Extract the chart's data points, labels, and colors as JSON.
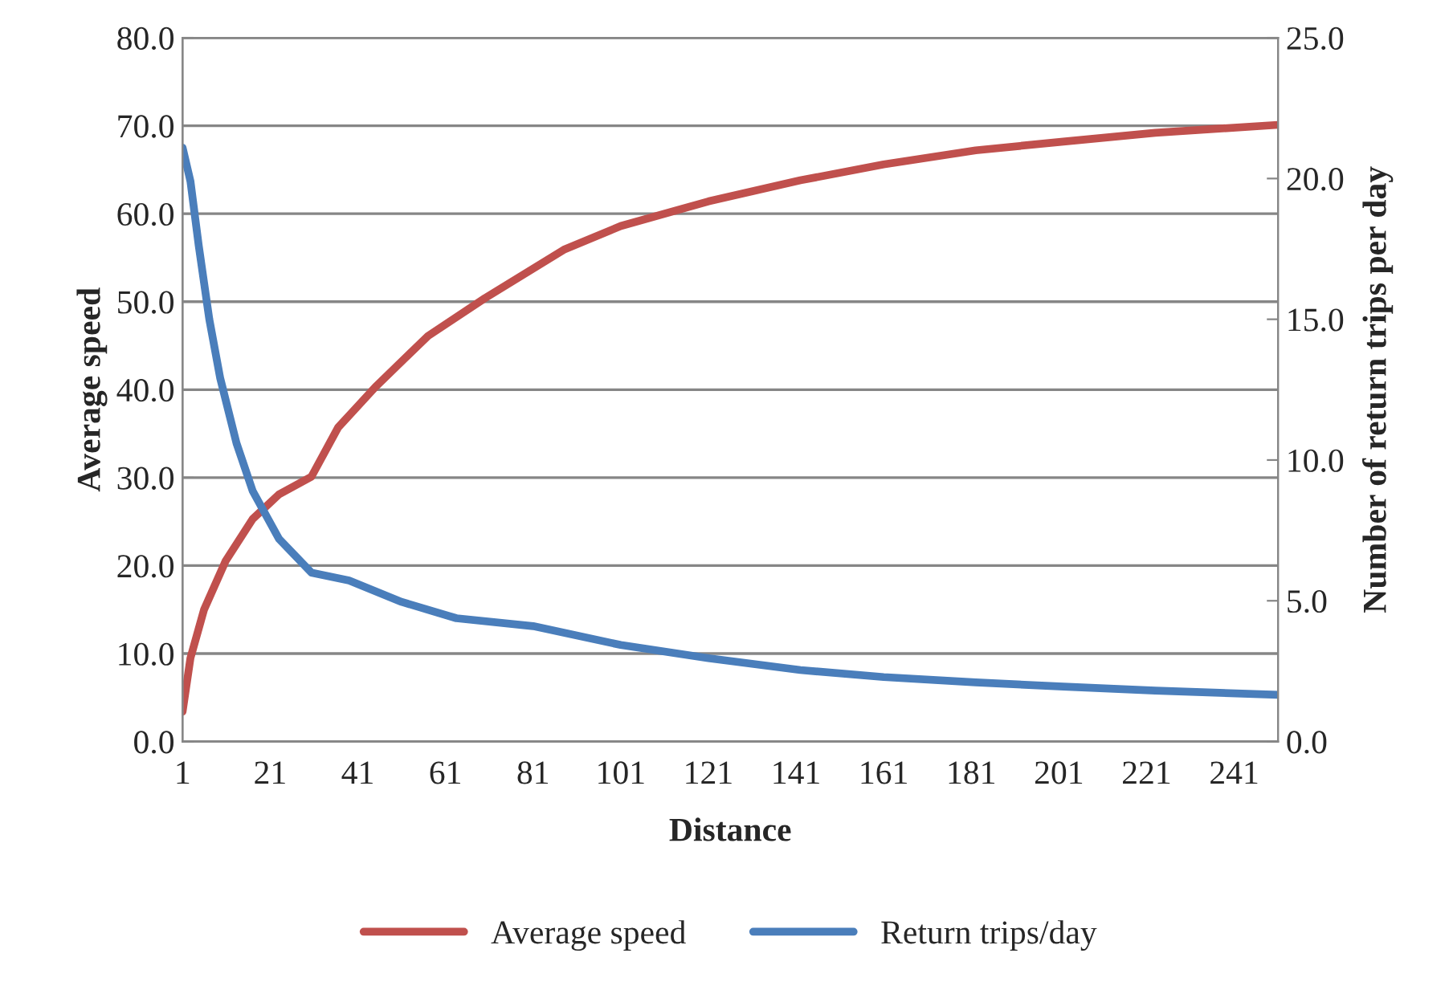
{
  "chart_data": {
    "type": "line",
    "xlabel": "Distance",
    "ylabel": "Average speed",
    "y2label": "Number of return trips per day",
    "xlim": [
      1,
      251
    ],
    "xticks": [
      1,
      21,
      41,
      61,
      81,
      101,
      121,
      141,
      161,
      181,
      201,
      221,
      241
    ],
    "ylim": [
      0,
      80
    ],
    "yticks": [
      {
        "value": 0,
        "label": "0.0"
      },
      {
        "value": 10,
        "label": "10.0"
      },
      {
        "value": 20,
        "label": "20.0"
      },
      {
        "value": 30,
        "label": "30.0"
      },
      {
        "value": 40,
        "label": "40.0"
      },
      {
        "value": 50,
        "label": "50.0"
      },
      {
        "value": 60,
        "label": "60.0"
      },
      {
        "value": 70,
        "label": "70.0"
      },
      {
        "value": 80,
        "label": "80.0"
      }
    ],
    "y2lim": [
      0,
      25
    ],
    "y2ticks": [
      {
        "value": 0,
        "label": "0.0"
      },
      {
        "value": 5,
        "label": "5.0"
      },
      {
        "value": 10,
        "label": "10.0"
      },
      {
        "value": 15,
        "label": "15.0"
      },
      {
        "value": 20,
        "label": "20.0"
      },
      {
        "value": 25,
        "label": "25.0"
      }
    ],
    "grid": "y",
    "legend": "bottom",
    "marker": "none",
    "line_style": "solid",
    "series": [
      {
        "name": "Average speed",
        "color": "#c0504d",
        "x": [
          1,
          2.8,
          5.9,
          10.8,
          17,
          23,
          30.4,
          36.5,
          45,
          57,
          70,
          88,
          101,
          121,
          142,
          161,
          182,
          202,
          223,
          251
        ],
        "values": [
          3.4,
          9.5,
          15,
          20.5,
          25.3,
          28.1,
          30.1,
          35.7,
          40.3,
          46.1,
          50.4,
          55.9,
          58.6,
          61.4,
          63.8,
          65.6,
          67.2,
          68.2,
          69.2,
          70.1
        ]
      },
      {
        "name": "Return trips/day",
        "color": "#4a7ebb",
        "axis": "y2",
        "x": [
          1,
          2.8,
          4.7,
          7.1,
          9.6,
          13.3,
          17,
          23,
          30.4,
          39,
          51,
          63.5,
          81,
          101,
          121,
          142,
          161,
          182,
          202,
          223,
          251
        ],
        "values": [
          21.1,
          19.9,
          17.6,
          15,
          12.9,
          10.6,
          8.9,
          7.2,
          6,
          5.72,
          4.96,
          4.38,
          4.1,
          3.43,
          2.96,
          2.54,
          2.29,
          2.1,
          1.95,
          1.81,
          1.66
        ]
      }
    ]
  }
}
